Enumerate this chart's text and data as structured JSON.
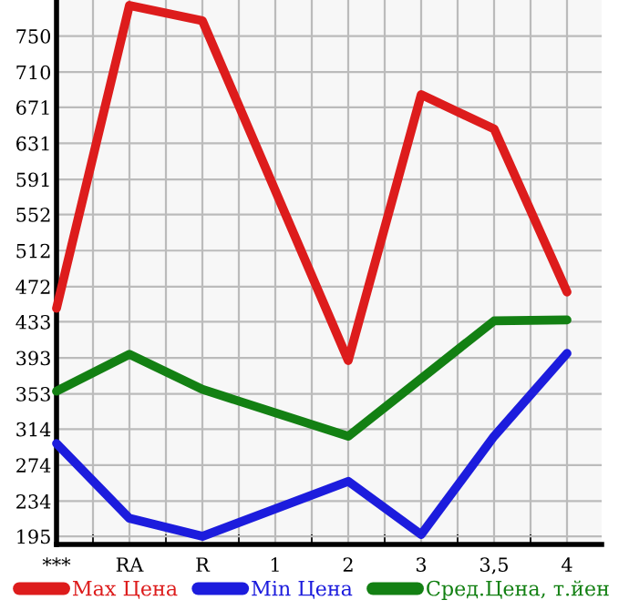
{
  "chart_data": {
    "type": "line",
    "categories": [
      "***",
      "RA",
      "R",
      "1",
      "2",
      "3",
      "3,5",
      "4"
    ],
    "series": [
      {
        "name": "Max Цена",
        "color": "#dd1c1c",
        "values": [
          448,
          784,
          767,
          null,
          390,
          685,
          647,
          466
        ]
      },
      {
        "name": "Min Цена",
        "color": "#1c1cdd",
        "values": [
          298,
          215,
          195,
          null,
          256,
          197,
          306,
          398
        ]
      },
      {
        "name": "Сред.Цена, т.йен",
        "color": "#138013",
        "values": [
          356,
          397,
          358,
          null,
          306,
          370,
          434,
          435
        ]
      }
    ],
    "ylim": [
      186,
      790
    ],
    "yticks": [
      195,
      234,
      274,
      314,
      353,
      393,
      433,
      472,
      512,
      552,
      591,
      631,
      671,
      710,
      750
    ],
    "grid": true,
    "legend": "bottom",
    "marker": "none",
    "line_style": "solid"
  }
}
